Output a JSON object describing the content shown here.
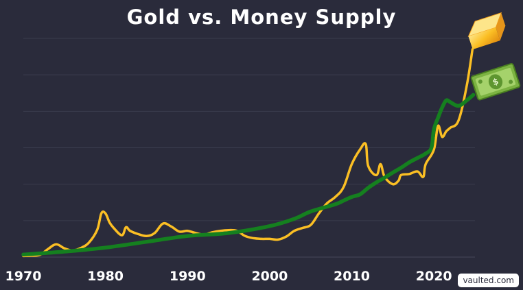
{
  "chart_data": {
    "type": "line",
    "title": "Gold vs. Money Supply",
    "xlabel": "",
    "ylabel": "",
    "xlim": [
      1970,
      2025
    ],
    "ylim": [
      0,
      6
    ],
    "grid": true,
    "x_ticks": [
      1970,
      1980,
      1990,
      2000,
      2010,
      2020
    ],
    "x_tick_labels": [
      "1970",
      "1980",
      "1990",
      "2000",
      "2010",
      "2020"
    ],
    "series": [
      {
        "name": "Gold",
        "color": "#fbbf24",
        "end_icon": "gold-bar-icon",
        "x": [
          1970,
          1971,
          1972,
          1973,
          1974,
          1975,
          1976,
          1977,
          1978,
          1979,
          1979.5,
          1980,
          1980.5,
          1981,
          1982,
          1982.5,
          1983,
          1984,
          1985,
          1986,
          1987,
          1988,
          1989,
          1990,
          1991,
          1992,
          1993,
          1994,
          1995,
          1996,
          1997,
          1998,
          1999,
          2000,
          2001,
          2002,
          2003,
          2004,
          2005,
          2006,
          2007,
          2008,
          2009,
          2010,
          2011,
          2011.7,
          2012,
          2013,
          2013.5,
          2014,
          2015,
          2015.7,
          2016,
          2017,
          2018,
          2018.7,
          2019,
          2020,
          2020.5,
          2021,
          2021.5,
          2022,
          2023,
          2024,
          2024.7
        ],
        "values": [
          0.03,
          0.04,
          0.06,
          0.22,
          0.35,
          0.24,
          0.18,
          0.25,
          0.4,
          0.75,
          1.2,
          1.2,
          0.95,
          0.8,
          0.6,
          0.82,
          0.72,
          0.63,
          0.58,
          0.66,
          0.92,
          0.84,
          0.7,
          0.72,
          0.66,
          0.62,
          0.68,
          0.72,
          0.74,
          0.72,
          0.58,
          0.52,
          0.5,
          0.5,
          0.48,
          0.56,
          0.72,
          0.8,
          0.88,
          1.2,
          1.48,
          1.65,
          1.92,
          2.55,
          2.95,
          3.1,
          2.5,
          2.25,
          2.55,
          2.2,
          2.0,
          2.1,
          2.25,
          2.28,
          2.35,
          2.2,
          2.55,
          2.95,
          3.6,
          3.3,
          3.45,
          3.55,
          3.75,
          4.7,
          5.7
        ]
      },
      {
        "name": "Money Supply",
        "color": "#15801f",
        "end_icon": "dollar-bill-icon",
        "x": [
          1970,
          1975,
          1980,
          1985,
          1990,
          1995,
          2000,
          2003,
          2005,
          2008,
          2009,
          2010,
          2011,
          2012,
          2013,
          2014,
          2015,
          2016,
          2017,
          2018,
          2019,
          2019.7,
          2020,
          2020.5,
          2021,
          2021.5,
          2022,
          2023,
          2024,
          2024.8
        ],
        "values": [
          0.07,
          0.15,
          0.26,
          0.42,
          0.58,
          0.66,
          0.85,
          1.05,
          1.25,
          1.45,
          1.55,
          1.65,
          1.72,
          1.9,
          2.05,
          2.18,
          2.32,
          2.45,
          2.6,
          2.72,
          2.84,
          3.0,
          3.5,
          3.82,
          4.1,
          4.3,
          4.25,
          4.15,
          4.3,
          4.45
        ]
      }
    ]
  },
  "watermark": "vaulted.com"
}
